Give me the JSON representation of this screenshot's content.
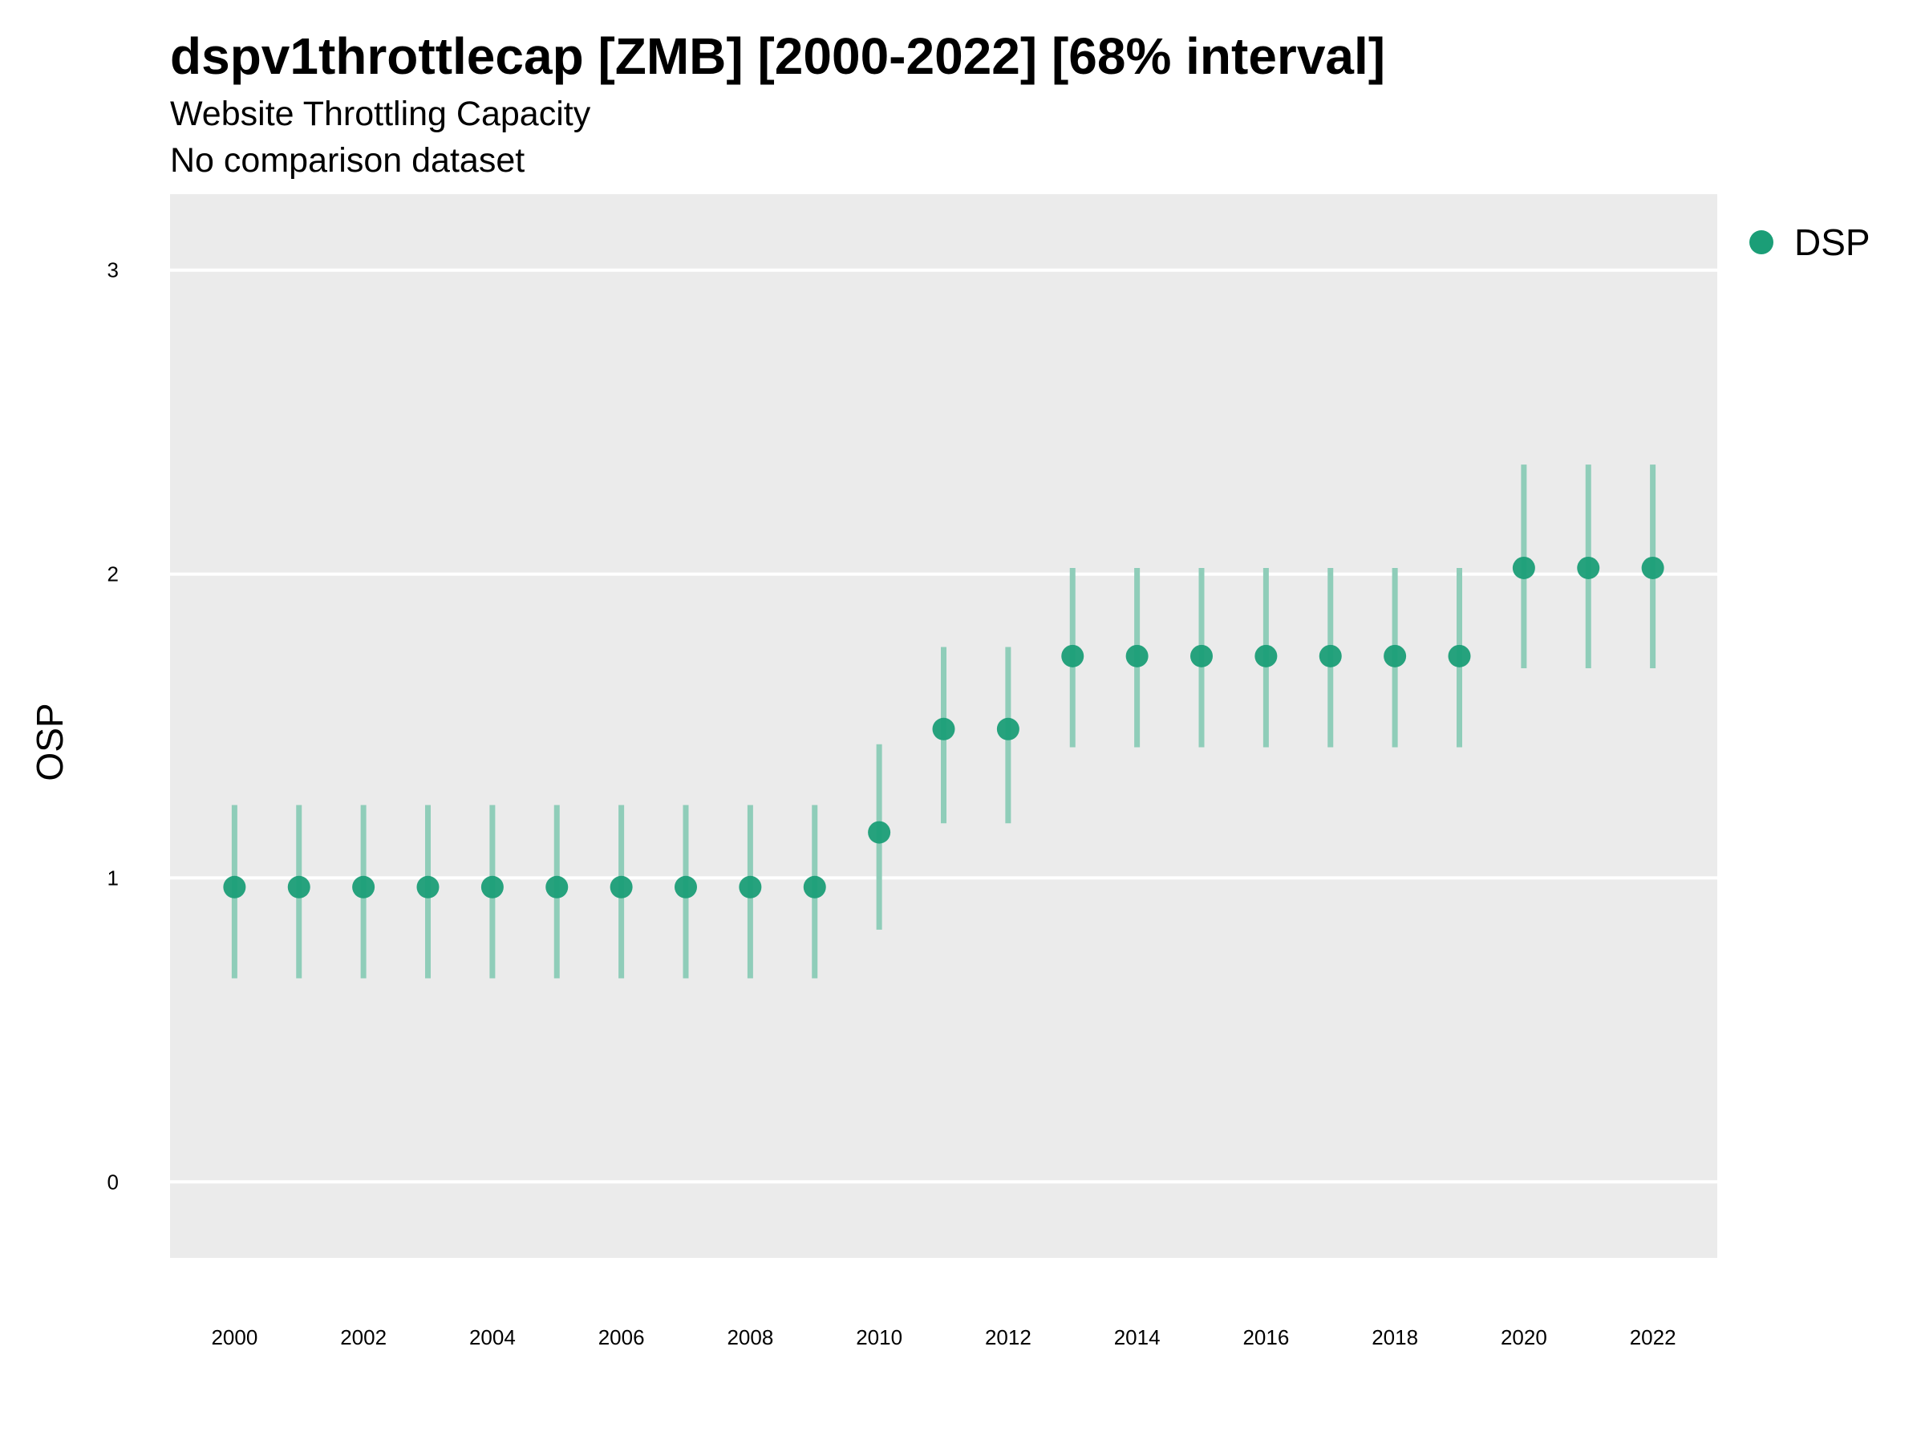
{
  "chart_data": {
    "type": "scatter",
    "title": "dspv1throttlecap [ZMB] [2000-2022] [68% interval]",
    "subtitle": "Website Throttling Capacity",
    "subtitle2": "No comparison dataset",
    "xlabel": "",
    "ylabel": "OSP",
    "xlim": [
      1999,
      2023
    ],
    "ylim": [
      -0.25,
      3.25
    ],
    "x_ticks": [
      "2000",
      "2002",
      "2004",
      "2006",
      "2008",
      "2010",
      "2012",
      "2014",
      "2016",
      "2018",
      "2020",
      "2022"
    ],
    "y_ticks": [
      "0",
      "1",
      "2",
      "3"
    ],
    "grid": true,
    "legend_position": "top-right",
    "colors": {
      "point": "#1b9e77",
      "interval": "#8fcdb9",
      "panel": "#ebebeb",
      "grid": "#ffffff"
    },
    "series": [
      {
        "name": "DSP",
        "x": [
          2000,
          2001,
          2002,
          2003,
          2004,
          2005,
          2006,
          2007,
          2008,
          2009,
          2010,
          2011,
          2012,
          2013,
          2014,
          2015,
          2016,
          2017,
          2018,
          2019,
          2020,
          2021,
          2022
        ],
        "y": [
          0.97,
          0.97,
          0.97,
          0.97,
          0.97,
          0.97,
          0.97,
          0.97,
          0.97,
          0.97,
          1.15,
          1.49,
          1.49,
          1.73,
          1.73,
          1.73,
          1.73,
          1.73,
          1.73,
          1.73,
          2.02,
          2.02,
          2.02
        ],
        "lower": [
          0.67,
          0.67,
          0.67,
          0.67,
          0.67,
          0.67,
          0.67,
          0.67,
          0.67,
          0.67,
          0.83,
          1.18,
          1.18,
          1.43,
          1.43,
          1.43,
          1.43,
          1.43,
          1.43,
          1.43,
          1.69,
          1.69,
          1.69
        ],
        "upper": [
          1.24,
          1.24,
          1.24,
          1.24,
          1.24,
          1.24,
          1.24,
          1.24,
          1.24,
          1.24,
          1.44,
          1.76,
          1.76,
          2.02,
          2.02,
          2.02,
          2.02,
          2.02,
          2.02,
          2.02,
          2.36,
          2.36,
          2.36
        ]
      }
    ]
  }
}
